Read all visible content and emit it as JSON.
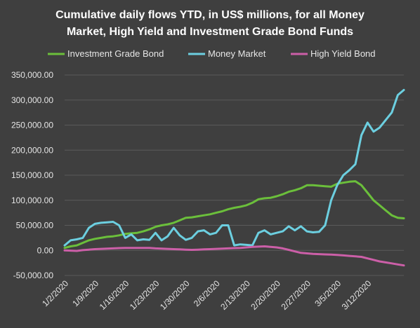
{
  "chart_data": {
    "type": "line",
    "title_line1": "Cumulative daily flows YTD,  in US$ millions, for all Money",
    "title_line2": "Market, High Yield and Investment Grade Bond Funds",
    "xlabel": "",
    "ylabel": "",
    "ylim": [
      -50000,
      350000
    ],
    "yticks": [
      350000,
      300000,
      250000,
      200000,
      150000,
      100000,
      50000,
      0,
      -50000
    ],
    "ytick_labels": [
      "350,000.00",
      "300,000.00",
      "250,000.00",
      "200,000.00",
      "150,000.00",
      "100,000.00",
      "50,000.00",
      "0.00",
      "-50,000.00"
    ],
    "xtick_labels": [
      "1/2/2020",
      "1/9/2020",
      "1/16/2020",
      "1/23/2020",
      "1/30/2020",
      "2/6/2020",
      "2/13/2020",
      "2/20/2020",
      "2/27/2020",
      "3/5/2020",
      "3/12/2020"
    ],
    "xtick_index": [
      0,
      5,
      10,
      15,
      20,
      25,
      30,
      35,
      40,
      45,
      50
    ],
    "grid": "horizontal",
    "legend_position": "top",
    "series": [
      {
        "name": "Investment Grade Bond",
        "color": "#6bbf3b",
        "values": [
          5000,
          8000,
          10000,
          15000,
          20000,
          23000,
          25000,
          27000,
          28000,
          30000,
          33000,
          34000,
          35000,
          38000,
          42000,
          47000,
          50000,
          52000,
          55000,
          60000,
          65000,
          66000,
          68000,
          70000,
          72000,
          75000,
          78000,
          82000,
          85000,
          87000,
          90000,
          95000,
          102000,
          104000,
          105000,
          108000,
          112000,
          117000,
          120000,
          124000,
          130000,
          130000,
          129000,
          128000,
          127000,
          133000,
          135000,
          137000,
          138000,
          130000,
          115000,
          100000,
          90000,
          80000,
          70000,
          65000,
          64000
        ]
      },
      {
        "name": "Money Market",
        "color": "#6ccfe0",
        "values": [
          10000,
          20000,
          22000,
          25000,
          45000,
          53000,
          55000,
          56000,
          57000,
          50000,
          25000,
          32000,
          20000,
          22000,
          21000,
          35000,
          20000,
          28000,
          45000,
          30000,
          21000,
          25000,
          38000,
          40000,
          32000,
          35000,
          50000,
          50000,
          10000,
          12000,
          11000,
          10000,
          35000,
          40000,
          32000,
          35000,
          38000,
          48000,
          40000,
          48000,
          38000,
          36000,
          37000,
          50000,
          100000,
          130000,
          150000,
          160000,
          172000,
          230000,
          255000,
          237000,
          245000,
          260000,
          275000,
          310000,
          320000
        ]
      },
      {
        "name": "High Yield Bond",
        "color": "#cc5fa8",
        "values": [
          0,
          -500,
          -1000,
          500,
          1500,
          2500,
          3000,
          3500,
          4000,
          4500,
          5000,
          5000,
          5000,
          5000,
          5000,
          4000,
          3500,
          3000,
          2500,
          2000,
          1500,
          1000,
          1500,
          2000,
          2500,
          3000,
          3500,
          4000,
          4500,
          5000,
          6000,
          7000,
          7500,
          8000,
          7000,
          6000,
          4000,
          1000,
          -2000,
          -5000,
          -6000,
          -7000,
          -7500,
          -8000,
          -8500,
          -9000,
          -10000,
          -11000,
          -12000,
          -13000,
          -16000,
          -19000,
          -22000,
          -24000,
          -26000,
          -28000,
          -30000
        ]
      }
    ]
  }
}
